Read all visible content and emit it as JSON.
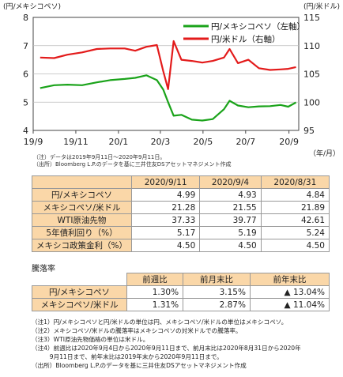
{
  "chart_data": {
    "type": "line",
    "x_ticks": [
      "19/9",
      "19/11",
      "20/1",
      "20/3",
      "20/5",
      "20/7",
      "20/9"
    ],
    "x_unit": "（年/月）",
    "left_axis": {
      "label": "(円/メキシコペソ)",
      "ticks": [
        4,
        5,
        6,
        7,
        8
      ],
      "range": [
        4,
        8
      ]
    },
    "right_axis": {
      "label": "(円/米ドル)",
      "ticks": [
        95,
        100,
        105,
        110,
        115
      ],
      "range": [
        95,
        115
      ]
    },
    "series": [
      {
        "name": "円/メキシコペソ（左軸）",
        "axis": "left",
        "color": "#1aa31a",
        "x": [
          "2019-09-11",
          "2019-10-01",
          "2019-10-20",
          "2019-11-10",
          "2019-12-01",
          "2019-12-20",
          "2020-01-10",
          "2020-01-25",
          "2020-02-10",
          "2020-02-25",
          "2020-03-05",
          "2020-03-12",
          "2020-03-20",
          "2020-03-31",
          "2020-04-15",
          "2020-04-30",
          "2020-05-15",
          "2020-05-31",
          "2020-06-08",
          "2020-06-20",
          "2020-07-05",
          "2020-07-20",
          "2020-08-05",
          "2020-08-20",
          "2020-08-31",
          "2020-09-11"
        ],
        "values": [
          5.5,
          5.6,
          5.62,
          5.6,
          5.7,
          5.78,
          5.82,
          5.86,
          5.95,
          5.78,
          5.45,
          5.0,
          4.52,
          4.55,
          4.38,
          4.35,
          4.4,
          4.75,
          5.05,
          4.88,
          4.82,
          4.85,
          4.86,
          4.9,
          4.84,
          4.99
        ]
      },
      {
        "name": "円/米ドル（右軸）",
        "axis": "right",
        "color": "#e31b1b",
        "x": [
          "2019-09-11",
          "2019-10-01",
          "2019-10-20",
          "2019-11-10",
          "2019-12-01",
          "2019-12-20",
          "2020-01-10",
          "2020-01-25",
          "2020-02-10",
          "2020-02-25",
          "2020-03-05",
          "2020-03-12",
          "2020-03-20",
          "2020-03-31",
          "2020-04-15",
          "2020-04-30",
          "2020-05-15",
          "2020-05-31",
          "2020-06-08",
          "2020-06-20",
          "2020-07-05",
          "2020-07-20",
          "2020-08-05",
          "2020-08-20",
          "2020-08-31",
          "2020-09-11"
        ],
        "values": [
          107.9,
          107.8,
          108.4,
          108.8,
          109.4,
          109.5,
          109.5,
          109.1,
          109.8,
          110.1,
          105.5,
          102.3,
          110.8,
          107.5,
          107.3,
          107.0,
          107.3,
          107.9,
          109.4,
          106.9,
          107.5,
          106.0,
          105.7,
          105.8,
          105.9,
          106.2
        ]
      }
    ],
    "source_note": "（注）データは2019年9月11日～2020年9月11日。",
    "source_credit": "（出所）Bloomberg L.P.のデータを基に三井住友DSアセットマネジメント作成"
  },
  "table1": {
    "headers": [
      "2020/9/11",
      "2020/9/4",
      "2020/8/31"
    ],
    "rows": [
      {
        "label": "円/メキシコペソ",
        "values": [
          "4.99",
          "4.93",
          "4.84"
        ]
      },
      {
        "label": "メキシコペソ/米ドル",
        "values": [
          "21.28",
          "21.55",
          "21.89"
        ]
      },
      {
        "label": "WTI原油先物",
        "values": [
          "37.33",
          "39.77",
          "42.61"
        ]
      },
      {
        "label": "5年債利回り（%）",
        "values": [
          "5.17",
          "5.19",
          "5.24"
        ]
      },
      {
        "label": "メキシコ政策金利（%）",
        "values": [
          "4.50",
          "4.50",
          "4.50"
        ]
      }
    ]
  },
  "table2": {
    "title": "騰落率",
    "headers": [
      "前週比",
      "前月末比",
      "前年末比"
    ],
    "rows": [
      {
        "label": "円/メキシコペソ",
        "values": [
          "1.30%",
          "3.15%",
          "▲ 13.04%"
        ]
      },
      {
        "label": "メキシコペソ/米ドル",
        "values": [
          "1.31%",
          "2.87%",
          "▲ 11.04%"
        ]
      }
    ]
  },
  "notes": [
    "（注1）円/メキシコペソと円/米ドルの単位は円、メキシコペソ/米ドルの単位はメキシコペソ。",
    "（注2）メキシコペソ/米ドルの騰落率はメキシコペソの対米ドルでの騰落率。",
    "（注3）WTI原油先物価格の単位は米ドル。",
    "（注4）前週比は2020年9月4日から2020年9月11日まで、前月末比は2020年8月31日から2020年",
    "　　　9月11日まで、前年末比は2019年末から2020年9月11日まで。",
    "（出所）Bloomberg L.P.のデータを基に三井住友DSアセットマネジメント作成"
  ]
}
